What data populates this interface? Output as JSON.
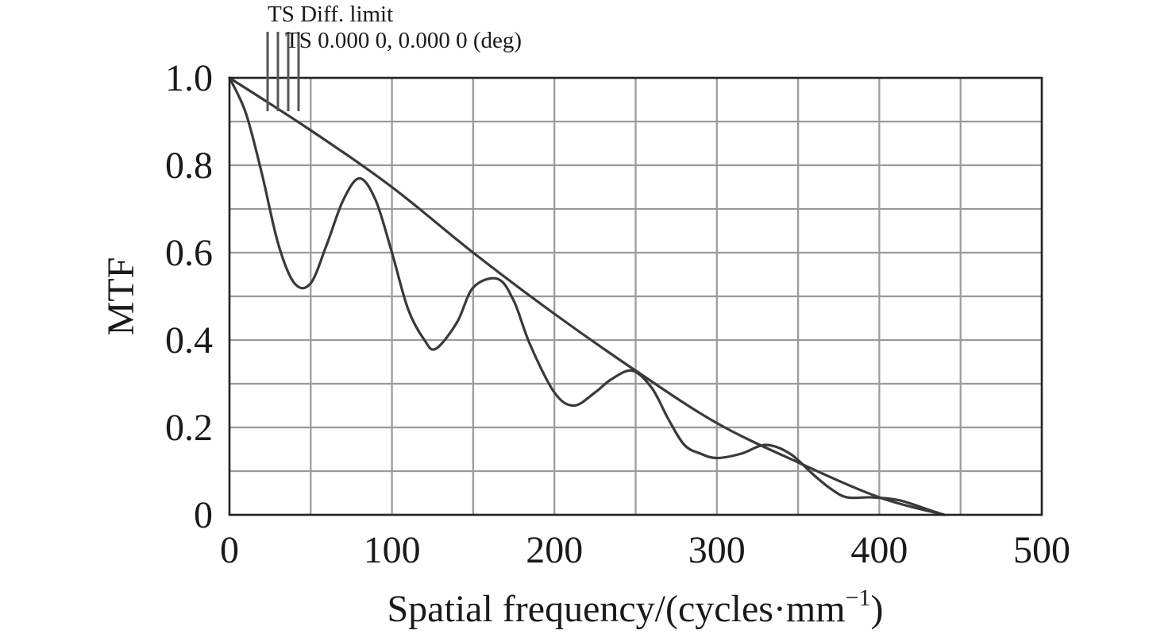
{
  "chart_data": {
    "type": "line",
    "title": "",
    "xlabel": "Spatial frequency/(cycles·mm",
    "xlabel_sup": "−1",
    "xlabel_suffix": ")",
    "ylabel": "MTF",
    "xlim": [
      0,
      500
    ],
    "ylim": [
      0,
      1.0
    ],
    "x_ticks": [
      0,
      100,
      200,
      300,
      400,
      500
    ],
    "x_tick_labels": [
      "0",
      "100",
      "200",
      "300",
      "400",
      "500"
    ],
    "x_minor_grid": [
      50,
      150,
      250,
      350,
      450
    ],
    "y_ticks": [
      0,
      0.2,
      0.4,
      0.6,
      0.8,
      1.0
    ],
    "y_tick_labels": [
      "0",
      "0.2",
      "0.4",
      "0.6",
      "0.8",
      "1.0"
    ],
    "y_minor_grid": [
      0.1,
      0.3,
      0.5,
      0.7,
      0.9
    ],
    "grid": true,
    "legend_position": "top-left",
    "series": [
      {
        "name": "TS Diff. limit",
        "color": "#3a3a3a",
        "x": [
          0,
          50,
          100,
          150,
          200,
          250,
          300,
          350,
          400,
          440
        ],
        "y": [
          1.0,
          0.88,
          0.75,
          0.6,
          0.46,
          0.33,
          0.21,
          0.12,
          0.04,
          0.0
        ]
      },
      {
        "name": "TS 0.000 0, 0.000 0 (deg)",
        "color": "#3a3a3a",
        "x": [
          0,
          10,
          20,
          30,
          40,
          50,
          60,
          70,
          80,
          90,
          100,
          110,
          120,
          127,
          140,
          150,
          165,
          175,
          185,
          200,
          212,
          225,
          235,
          248,
          260,
          270,
          280,
          290,
          300,
          315,
          330,
          345,
          360,
          370,
          380,
          395,
          410,
          420,
          430,
          440
        ],
        "y": [
          1.0,
          0.92,
          0.78,
          0.62,
          0.53,
          0.53,
          0.62,
          0.72,
          0.77,
          0.72,
          0.6,
          0.47,
          0.4,
          0.38,
          0.44,
          0.52,
          0.54,
          0.49,
          0.39,
          0.28,
          0.25,
          0.28,
          0.31,
          0.33,
          0.29,
          0.22,
          0.16,
          0.14,
          0.13,
          0.14,
          0.16,
          0.14,
          0.09,
          0.06,
          0.04,
          0.04,
          0.035,
          0.025,
          0.012,
          0.0
        ]
      }
    ]
  }
}
